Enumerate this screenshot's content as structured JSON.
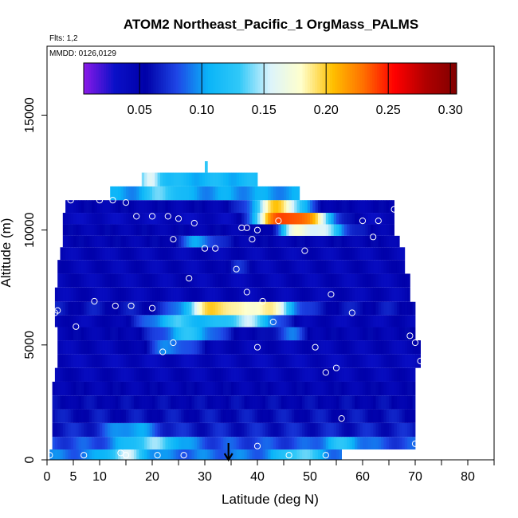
{
  "chart_data": {
    "type": "heatmap",
    "title": "ATOM2 Northeast_Pacific_1 OrgMass_PALMS",
    "flights_label": "Flts: 1,2",
    "dates_label": "MMDD: 0126,0129",
    "xlabel": "Latitude (deg N)",
    "ylabel": "Altitude (m)",
    "xlim": [
      0,
      85
    ],
    "ylim": [
      0,
      18000
    ],
    "x_ticks": [
      0,
      5,
      10,
      20,
      30,
      40,
      50,
      60,
      70,
      80
    ],
    "y_ticks": [
      0,
      5000,
      10000,
      15000
    ],
    "colorbar": {
      "min": 0.005,
      "max": 0.305,
      "ticks": [
        0.05,
        0.1,
        0.15,
        0.2,
        0.25,
        0.3
      ],
      "tick_labels": [
        "0.05",
        "0.10",
        "0.15",
        "0.20",
        "0.25",
        "0.30"
      ],
      "colors": [
        "#8B1AE8",
        "#0A10C8",
        "#0000A8",
        "#1E46E6",
        "#0AB4F8",
        "#30C8F8",
        "#DCF4FC",
        "#FFFFCC",
        "#FFC000",
        "#FF7000",
        "#FF0000",
        "#B00000",
        "#800000"
      ]
    },
    "arrow_latitude": 34.5,
    "bands": [
      {
        "alt": 200,
        "start": 0.5,
        "end": 56,
        "base": 0.09,
        "hot": [
          {
            "c": 15,
            "w": 4,
            "a": 0.06
          },
          {
            "c": 48,
            "w": 4,
            "a": 0.05
          }
        ]
      },
      {
        "alt": 700,
        "start": 1,
        "end": 70,
        "base": 0.08,
        "hot": [
          {
            "c": 20,
            "w": 6,
            "a": 0.06
          },
          {
            "c": 56,
            "w": 4,
            "a": 0.04
          }
        ]
      },
      {
        "alt": 1300,
        "start": 1,
        "end": 70,
        "base": 0.065,
        "hot": [
          {
            "c": 16,
            "w": 5,
            "a": 0.04
          }
        ]
      },
      {
        "alt": 1900,
        "start": 1,
        "end": 70,
        "base": 0.06,
        "hot": []
      },
      {
        "alt": 2500,
        "start": 1,
        "end": 70,
        "base": 0.055,
        "hot": []
      },
      {
        "alt": 3100,
        "start": 1,
        "end": 70,
        "base": 0.05,
        "hot": []
      },
      {
        "alt": 3700,
        "start": 1.5,
        "end": 70,
        "base": 0.045,
        "hot": []
      },
      {
        "alt": 4300,
        "start": 2,
        "end": 71,
        "base": 0.042,
        "hot": []
      },
      {
        "alt": 4900,
        "start": 2,
        "end": 71,
        "base": 0.045,
        "hot": [
          {
            "c": 24,
            "w": 5,
            "a": 0.05
          }
        ]
      },
      {
        "alt": 5500,
        "start": 2,
        "end": 70,
        "base": 0.05,
        "hot": [
          {
            "c": 27,
            "w": 6,
            "a": 0.07
          },
          {
            "c": 46,
            "w": 3,
            "a": 0.04
          }
        ]
      },
      {
        "alt": 6050,
        "start": 1.5,
        "end": 70,
        "base": 0.045,
        "hot": [
          {
            "c": 25,
            "w": 7,
            "a": 0.08
          },
          {
            "c": 38,
            "w": 6,
            "a": 0.1
          }
        ]
      },
      {
        "alt": 6550,
        "start": 1.5,
        "end": 70,
        "base": 0.06,
        "hot": [
          {
            "c": 32,
            "w": 6,
            "a": 0.14
          },
          {
            "c": 42,
            "w": 5,
            "a": 0.12
          }
        ]
      },
      {
        "alt": 7200,
        "start": 1.5,
        "end": 69,
        "base": 0.045,
        "hot": []
      },
      {
        "alt": 7800,
        "start": 2,
        "end": 69,
        "base": 0.045,
        "hot": []
      },
      {
        "alt": 8400,
        "start": 2,
        "end": 68,
        "base": 0.045,
        "hot": [
          {
            "c": 36,
            "w": 2,
            "a": 0.03
          }
        ]
      },
      {
        "alt": 9000,
        "start": 2.5,
        "end": 68,
        "base": 0.045,
        "hot": []
      },
      {
        "alt": 9500,
        "start": 3,
        "end": 67,
        "base": 0.05,
        "hot": [
          {
            "c": 29,
            "w": 4,
            "a": 0.05
          }
        ]
      },
      {
        "alt": 10000,
        "start": 3,
        "end": 66,
        "base": 0.05,
        "hot": [
          {
            "c": 52,
            "w": 5,
            "a": 0.1
          },
          {
            "c": 47,
            "w": 3,
            "a": 0.08
          }
        ]
      },
      {
        "alt": 10500,
        "start": 3,
        "end": 66,
        "base": 0.04,
        "hot": [
          {
            "c": 48,
            "w": 6,
            "a": 0.2
          },
          {
            "c": 42,
            "w": 3,
            "a": 0.1
          }
        ]
      },
      {
        "alt": 11000,
        "start": 3.5,
        "end": 66,
        "base": 0.05,
        "hot": [
          {
            "c": 44,
            "w": 5,
            "a": 0.15
          }
        ]
      },
      {
        "alt": 11600,
        "start": 12,
        "end": 48,
        "base": 0.1,
        "hot": [
          {
            "c": 22,
            "w": 3,
            "a": 0.04
          }
        ]
      },
      {
        "alt": 12200,
        "start": 18,
        "end": 40,
        "base": 0.11,
        "hot": [
          {
            "c": 20,
            "w": 2,
            "a": 0.05
          }
        ]
      },
      {
        "alt": 12800,
        "start": 30,
        "end": 30.5,
        "base": 0.12,
        "hot": []
      }
    ],
    "points": [
      {
        "x": 0.5,
        "y": 200
      },
      {
        "x": 7,
        "y": 200
      },
      {
        "x": 14,
        "y": 300
      },
      {
        "x": 15,
        "y": 200
      },
      {
        "x": 21,
        "y": 200
      },
      {
        "x": 26,
        "y": 200
      },
      {
        "x": 46,
        "y": 200
      },
      {
        "x": 53,
        "y": 200
      },
      {
        "x": 40,
        "y": 600
      },
      {
        "x": 70,
        "y": 700
      },
      {
        "x": 56,
        "y": 1800
      },
      {
        "x": 53,
        "y": 3800
      },
      {
        "x": 55,
        "y": 4000
      },
      {
        "x": 71,
        "y": 4300
      },
      {
        "x": 22,
        "y": 4700
      },
      {
        "x": 24,
        "y": 5100
      },
      {
        "x": 40,
        "y": 4900
      },
      {
        "x": 51,
        "y": 4900
      },
      {
        "x": 70,
        "y": 5100
      },
      {
        "x": 69,
        "y": 5400
      },
      {
        "x": 5.5,
        "y": 5800
      },
      {
        "x": 43,
        "y": 6000
      },
      {
        "x": 58,
        "y": 6400
      },
      {
        "x": 1.5,
        "y": 6400
      },
      {
        "x": 2,
        "y": 6500
      },
      {
        "x": 9,
        "y": 6900
      },
      {
        "x": 13,
        "y": 6700
      },
      {
        "x": 16,
        "y": 6700
      },
      {
        "x": 20,
        "y": 6600
      },
      {
        "x": 41,
        "y": 6900
      },
      {
        "x": 38,
        "y": 7300
      },
      {
        "x": 54,
        "y": 7200
      },
      {
        "x": 27,
        "y": 7900
      },
      {
        "x": 36,
        "y": 8300
      },
      {
        "x": 30,
        "y": 9200
      },
      {
        "x": 32,
        "y": 9200
      },
      {
        "x": 49,
        "y": 9100
      },
      {
        "x": 24,
        "y": 9600
      },
      {
        "x": 39,
        "y": 9600
      },
      {
        "x": 62,
        "y": 9700
      },
      {
        "x": 37,
        "y": 10100
      },
      {
        "x": 38,
        "y": 10100
      },
      {
        "x": 40,
        "y": 10000
      },
      {
        "x": 28,
        "y": 10300
      },
      {
        "x": 44,
        "y": 10400
      },
      {
        "x": 60,
        "y": 10400
      },
      {
        "x": 63,
        "y": 10400
      },
      {
        "x": 17,
        "y": 10600
      },
      {
        "x": 20,
        "y": 10600
      },
      {
        "x": 23,
        "y": 10600
      },
      {
        "x": 25,
        "y": 10500
      },
      {
        "x": 66,
        "y": 10900
      },
      {
        "x": 4.5,
        "y": 11300
      },
      {
        "x": 10,
        "y": 11300
      },
      {
        "x": 12.5,
        "y": 11300
      },
      {
        "x": 15,
        "y": 11200
      }
    ]
  }
}
